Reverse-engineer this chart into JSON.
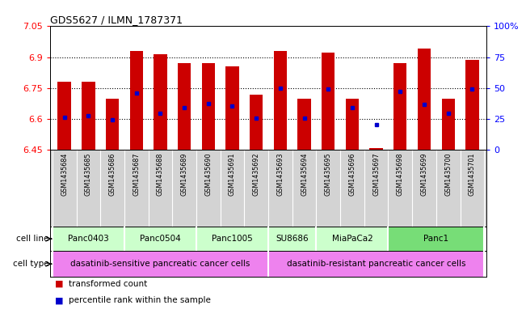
{
  "title": "GDS5627 / ILMN_1787371",
  "samples": [
    "GSM1435684",
    "GSM1435685",
    "GSM1435686",
    "GSM1435687",
    "GSM1435688",
    "GSM1435689",
    "GSM1435690",
    "GSM1435691",
    "GSM1435692",
    "GSM1435693",
    "GSM1435694",
    "GSM1435695",
    "GSM1435696",
    "GSM1435697",
    "GSM1435698",
    "GSM1435699",
    "GSM1435700",
    "GSM1435701"
  ],
  "bar_tops": [
    6.78,
    6.78,
    6.7,
    6.93,
    6.915,
    6.87,
    6.87,
    6.855,
    6.72,
    6.93,
    6.7,
    6.92,
    6.7,
    6.46,
    6.87,
    6.94,
    6.7,
    6.885
  ],
  "bar_base": 6.45,
  "blue_dot_y": [
    6.61,
    6.615,
    6.595,
    6.725,
    6.63,
    6.655,
    6.675,
    6.665,
    6.605,
    6.75,
    6.605,
    6.745,
    6.655,
    6.575,
    6.735,
    6.67,
    6.63,
    6.745
  ],
  "ylim": [
    6.45,
    7.05
  ],
  "yticks": [
    6.45,
    6.6,
    6.75,
    6.9,
    7.05
  ],
  "ytick_labels": [
    "6.45",
    "6.6",
    "6.75",
    "6.9",
    "7.05"
  ],
  "right_yticks": [
    0,
    25,
    50,
    75,
    100
  ],
  "right_ytick_labels": [
    "0",
    "25",
    "50",
    "75",
    "100%"
  ],
  "grid_yticks": [
    6.6,
    6.75,
    6.9
  ],
  "bar_color": "#cc0000",
  "blue_dot_color": "#0000cc",
  "sample_bg_color": "#d3d3d3",
  "cell_line_data": [
    {
      "label": "Panc0403",
      "start": 0,
      "end": 2,
      "color": "#ccffcc"
    },
    {
      "label": "Panc0504",
      "start": 3,
      "end": 5,
      "color": "#ccffcc"
    },
    {
      "label": "Panc1005",
      "start": 6,
      "end": 8,
      "color": "#ccffcc"
    },
    {
      "label": "SU8686",
      "start": 9,
      "end": 10,
      "color": "#ccffcc"
    },
    {
      "label": "MiaPaCa2",
      "start": 11,
      "end": 13,
      "color": "#ccffcc"
    },
    {
      "label": "Panc1",
      "start": 14,
      "end": 17,
      "color": "#77dd77"
    }
  ],
  "cell_type_data": [
    {
      "label": "dasatinib-sensitive pancreatic cancer cells",
      "start": 0,
      "end": 8,
      "color": "#ee82ee"
    },
    {
      "label": "dasatinib-resistant pancreatic cancer cells",
      "start": 9,
      "end": 17,
      "color": "#ee82ee"
    }
  ],
  "legend": [
    {
      "color": "#cc0000",
      "symbol": "s",
      "label": "transformed count"
    },
    {
      "color": "#0000cc",
      "symbol": "s",
      "label": "percentile rank within the sample"
    }
  ]
}
